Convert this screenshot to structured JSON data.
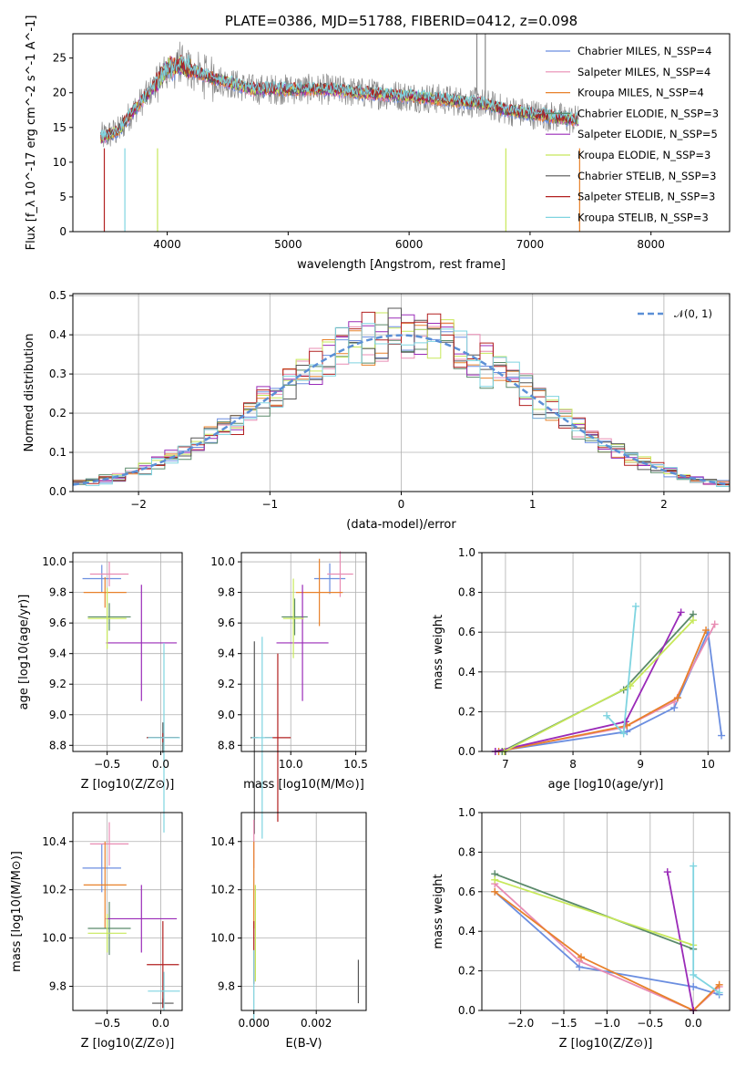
{
  "chart_data": [
    {
      "type": "line",
      "title": "PLATE=0386, MJD=51788, FIBERID=0412, z=0.098",
      "xlabel": "wavelength [Angstrom, rest frame]",
      "ylabel": "Flux [f_λ 10^-17 erg cm^-2 s^-1 A^-1]",
      "xlim": [
        3220,
        8650
      ],
      "ylim": [
        0,
        28.5
      ],
      "xticks": [
        "4000",
        "5000",
        "6000",
        "7000",
        "8000"
      ],
      "yticks": [
        "0",
        "5",
        "10",
        "15",
        "20",
        "25"
      ],
      "legend_placement": "upper-right",
      "legend": [
        {
          "label": "Chabrier MILES, N_SSP=4",
          "color": "#6b8ee0"
        },
        {
          "label": "Salpeter MILES, N_SSP=4",
          "color": "#e88cb3"
        },
        {
          "label": "Kroupa MILES, N_SSP=4",
          "color": "#e8812a"
        },
        {
          "label": "Chabrier ELODIE, N_SSP=3",
          "color": "#5a8a6a"
        },
        {
          "label": "Salpeter ELODIE, N_SSP=5",
          "color": "#9a2ab8"
        },
        {
          "label": "Kroupa ELODIE, N_SSP=3",
          "color": "#c7e85a"
        },
        {
          "label": "Chabrier STELIB, N_SSP=3",
          "color": "#555555"
        },
        {
          "label": "Salpeter STELIB, N_SSP=3",
          "color": "#b22020"
        },
        {
          "label": "Kroupa STELIB, N_SSP=3",
          "color": "#7fd4e0"
        }
      ],
      "data_color": "#888888",
      "spectrum_envelope": {
        "x": [
          3450,
          3600,
          3700,
          3900,
          4000,
          4100,
          4300,
          4500,
          4700,
          5000,
          5300,
          5600,
          6000,
          6300,
          6600,
          6800,
          7000,
          7200,
          7400
        ],
        "y": [
          13.5,
          14.5,
          17,
          21,
          23.5,
          24,
          22.5,
          21.5,
          20.5,
          20.5,
          20.5,
          20,
          19.5,
          19,
          18.5,
          17.5,
          17,
          16.5,
          16
        ]
      }
    },
    {
      "type": "line",
      "xlabel": "(data-model)/error",
      "ylabel": "Normed distribution",
      "xlim": [
        -2.5,
        2.5
      ],
      "ylim": [
        0,
        0.505
      ],
      "xticks": [
        "−2",
        "−1",
        "0",
        "1",
        "2"
      ],
      "yticks": [
        "0.0",
        "0.1",
        "0.2",
        "0.3",
        "0.4",
        "0.5"
      ],
      "legend_placement": "upper-right",
      "legend": [
        {
          "label": "𝒩(0, 1)",
          "color": "#5b8fd6"
        }
      ],
      "gaussian": {
        "mean": 0,
        "sigma": 1
      }
    },
    {
      "type": "scatter",
      "xlabel": "Z [log10(Z/Z⊙)]",
      "ylabel": "age [log10(age/yr)]",
      "xlim": [
        -0.82,
        0.2
      ],
      "ylim": [
        8.76,
        10.06
      ],
      "xticks": [
        "−0.5",
        "0.0"
      ],
      "yticks": [
        "8.8",
        "9.0",
        "9.2",
        "9.4",
        "9.6",
        "9.8",
        "10.0"
      ],
      "points": [
        {
          "c": "#6b8ee0",
          "x": -0.55,
          "xerr": 0.18,
          "y": 9.89,
          "yerr": 0.09
        },
        {
          "c": "#e88cb3",
          "x": -0.48,
          "xerr": 0.18,
          "y": 9.92,
          "yerr": 0.08
        },
        {
          "c": "#e8812a",
          "x": -0.52,
          "xerr": 0.2,
          "y": 9.8,
          "yerr": 0.1
        },
        {
          "c": "#5a8a6a",
          "x": -0.48,
          "xerr": 0.2,
          "y": 9.64,
          "yerr": 0.09
        },
        {
          "c": "#9a2ab8",
          "x": -0.18,
          "xerr": 0.33,
          "y": 9.47,
          "yerr": 0.38
        },
        {
          "c": "#c7e85a",
          "x": -0.5,
          "xerr": 0.18,
          "y": 9.63,
          "yerr": 0.2
        },
        {
          "c": "#555555",
          "x": 0.02,
          "xerr": 0.15,
          "y": 8.85,
          "yerr": 0.1
        },
        {
          "c": "#b22020",
          "x": 0.02,
          "xerr": 0.15,
          "y": 8.85,
          "yerr": 0.03
        },
        {
          "c": "#7fd4e0",
          "x": 0.03,
          "xerr": 0.15,
          "y": 8.85,
          "yerr": 0.62
        }
      ]
    },
    {
      "type": "scatter",
      "xlabel": "mass [log10(M/M⊙)]",
      "ylabel": "",
      "xlim": [
        9.62,
        10.58
      ],
      "ylim": [
        8.76,
        10.06
      ],
      "xticks": [
        "10.0",
        "10.5"
      ],
      "yticks": [
        "8.8",
        "9.0",
        "9.2",
        "9.4",
        "9.6",
        "9.8",
        "10.0"
      ],
      "points": [
        {
          "c": "#6b8ee0",
          "x": 10.3,
          "xerr": 0.12,
          "y": 9.89,
          "yerr": 0.1
        },
        {
          "c": "#e88cb3",
          "x": 10.38,
          "xerr": 0.1,
          "y": 9.92,
          "yerr": 0.15
        },
        {
          "c": "#e8812a",
          "x": 10.22,
          "xerr": 0.18,
          "y": 9.8,
          "yerr": 0.22
        },
        {
          "c": "#5a8a6a",
          "x": 10.03,
          "xerr": 0.1,
          "y": 9.64,
          "yerr": 0.12
        },
        {
          "c": "#9a2ab8",
          "x": 10.09,
          "xerr": 0.2,
          "y": 9.47,
          "yerr": 0.38
        },
        {
          "c": "#c7e85a",
          "x": 10.02,
          "xerr": 0.08,
          "y": 9.63,
          "yerr": 0.26
        },
        {
          "c": "#555555",
          "x": 9.72,
          "xerr": 0.03,
          "y": 8.85,
          "yerr": 0.63
        },
        {
          "c": "#b22020",
          "x": 9.9,
          "xerr": 0.1,
          "y": 8.85,
          "yerr": 0.55
        },
        {
          "c": "#7fd4e0",
          "x": 9.78,
          "xerr": 0.08,
          "y": 8.85,
          "yerr": 0.66
        }
      ]
    },
    {
      "type": "line",
      "xlabel": "age [log10(age/yr)]",
      "ylabel": "mass weight",
      "xlim": [
        6.65,
        10.32
      ],
      "ylim": [
        0,
        1.0
      ],
      "xticks": [
        "7",
        "8",
        "9",
        "10"
      ],
      "yticks": [
        "0.0",
        "0.2",
        "0.4",
        "0.6",
        "0.8",
        "1.0"
      ],
      "series": [
        {
          "c": "#6b8ee0",
          "x": [
            6.85,
            8.8,
            9.5,
            10.0,
            10.2
          ],
          "y": [
            0.0,
            0.1,
            0.22,
            0.6,
            0.08
          ]
        },
        {
          "c": "#e88cb3",
          "x": [
            6.85,
            8.75,
            9.5,
            10.1
          ],
          "y": [
            0.0,
            0.12,
            0.25,
            0.64
          ]
        },
        {
          "c": "#e8812a",
          "x": [
            6.9,
            8.8,
            9.55,
            9.97
          ],
          "y": [
            0.0,
            0.13,
            0.27,
            0.61
          ]
        },
        {
          "c": "#5a8a6a",
          "x": [
            6.95,
            8.75,
            9.78
          ],
          "y": [
            0.0,
            0.31,
            0.69
          ]
        },
        {
          "c": "#9a2ab8",
          "x": [
            6.85,
            8.78,
            9.6
          ],
          "y": [
            0.0,
            0.15,
            0.7
          ]
        },
        {
          "c": "#c7e85a",
          "x": [
            6.98,
            8.85,
            9.78
          ],
          "y": [
            0.0,
            0.33,
            0.66
          ]
        },
        {
          "c": "#7fd4e0",
          "x": [
            8.5,
            8.75,
            8.93
          ],
          "y": [
            0.18,
            0.09,
            0.73
          ]
        }
      ]
    },
    {
      "type": "scatter",
      "xlabel": "Z [log10(Z/Z⊙)]",
      "ylabel": "mass [log10(M/M⊙)]",
      "xlim": [
        -0.82,
        0.2
      ],
      "ylim": [
        9.7,
        10.52
      ],
      "xticks": [
        "−0.5",
        "0.0"
      ],
      "yticks": [
        "9.8",
        "10.0",
        "10.2",
        "10.4"
      ],
      "points": [
        {
          "c": "#6b8ee0",
          "x": -0.55,
          "xerr": 0.18,
          "y": 10.29,
          "yerr": 0.1
        },
        {
          "c": "#e88cb3",
          "x": -0.48,
          "xerr": 0.18,
          "y": 10.39,
          "yerr": 0.09
        },
        {
          "c": "#e8812a",
          "x": -0.52,
          "xerr": 0.2,
          "y": 10.22,
          "yerr": 0.18
        },
        {
          "c": "#5a8a6a",
          "x": -0.48,
          "xerr": 0.2,
          "y": 10.04,
          "yerr": 0.11
        },
        {
          "c": "#9a2ab8",
          "x": -0.18,
          "xerr": 0.33,
          "y": 10.08,
          "yerr": 0.14
        },
        {
          "c": "#c7e85a",
          "x": -0.5,
          "xerr": 0.18,
          "y": 10.02,
          "yerr": 0.08
        },
        {
          "c": "#555555",
          "x": 0.02,
          "xerr": 0.1,
          "y": 9.73,
          "yerr": 0.02
        },
        {
          "c": "#b22020",
          "x": 0.02,
          "xerr": 0.15,
          "y": 9.89,
          "yerr": 0.18
        },
        {
          "c": "#7fd4e0",
          "x": 0.03,
          "xerr": 0.15,
          "y": 9.78,
          "yerr": 0.08
        }
      ]
    },
    {
      "type": "scatter",
      "xlabel": "E(B-V)",
      "ylabel": "",
      "xlim": [
        -0.0004,
        0.0036
      ],
      "ylim": [
        9.7,
        10.52
      ],
      "xticks": [
        "0.000",
        "0.002"
      ],
      "yticks": [
        "9.8",
        "10.0",
        "10.2",
        "10.4"
      ],
      "points": [
        {
          "c": "#e88cb3",
          "x": 0.0,
          "xerr": 0,
          "y": 10.39,
          "yerr": 0.1
        },
        {
          "c": "#e8812a",
          "x": 0.0,
          "xerr": 0,
          "y": 10.22,
          "yerr": 0.18
        },
        {
          "c": "#c7e85a",
          "x": 5e-05,
          "xerr": 0,
          "y": 10.02,
          "yerr": 0.2
        },
        {
          "c": "#b22020",
          "x": 0.0,
          "xerr": 0,
          "y": 9.94,
          "yerr": 0.13
        },
        {
          "c": "#7fd4e0",
          "x": 0.0,
          "xerr": 0,
          "y": 9.8,
          "yerr": 0.15
        },
        {
          "c": "#555555",
          "x": 0.00335,
          "xerr": 0,
          "y": 9.82,
          "yerr": 0.09
        }
      ]
    },
    {
      "type": "line",
      "xlabel": "Z [log10(Z/Z⊙)]",
      "ylabel": "mass weight",
      "xlim": [
        -2.45,
        0.42
      ],
      "ylim": [
        0,
        1.0
      ],
      "xticks": [
        "−2.0",
        "−1.5",
        "−1.0",
        "−0.5",
        "0.0"
      ],
      "yticks": [
        "0.0",
        "0.2",
        "0.4",
        "0.6",
        "0.8",
        "1.0"
      ],
      "series": [
        {
          "c": "#6b8ee0",
          "x": [
            -2.3,
            -1.32,
            0.0,
            0.3
          ],
          "y": [
            0.6,
            0.22,
            0.12,
            0.08
          ]
        },
        {
          "c": "#e88cb3",
          "x": [
            -2.3,
            -1.32,
            0.0,
            0.3
          ],
          "y": [
            0.64,
            0.25,
            0.0,
            0.12
          ]
        },
        {
          "c": "#e8812a",
          "x": [
            -2.3,
            -1.3,
            0.0,
            0.3
          ],
          "y": [
            0.6,
            0.27,
            0.0,
            0.13
          ]
        },
        {
          "c": "#5a8a6a",
          "x": [
            -2.3,
            0.0
          ],
          "y": [
            0.69,
            0.31
          ]
        },
        {
          "c": "#9a2ab8",
          "x": [
            -0.3,
            0.0
          ],
          "y": [
            0.7,
            0.0
          ]
        },
        {
          "c": "#c7e85a",
          "x": [
            -2.3,
            0.0
          ],
          "y": [
            0.66,
            0.33
          ]
        },
        {
          "c": "#7fd4e0",
          "x": [
            0.0,
            0.0,
            0.3
          ],
          "y": [
            0.73,
            0.18,
            0.09
          ]
        }
      ]
    }
  ]
}
